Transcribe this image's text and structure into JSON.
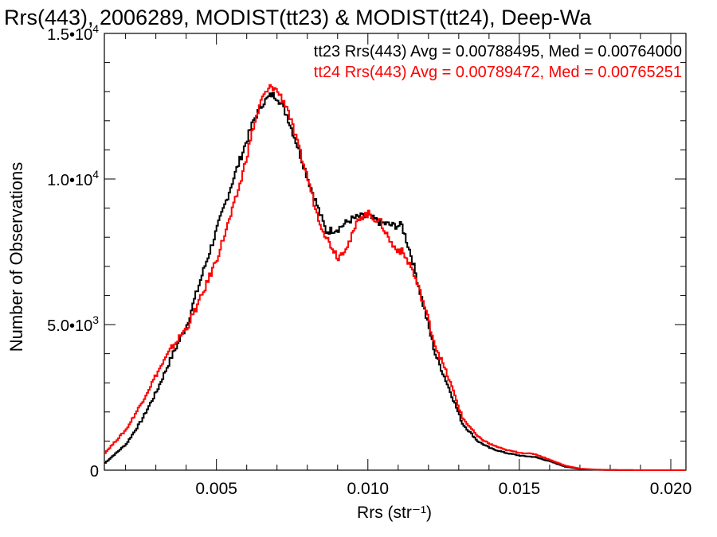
{
  "chart_data": {
    "type": "line",
    "title": "Rrs(443), 2006289, MODIST(tt23) & MODIST(tt24), Deep-Wa",
    "xlabel": "Rrs (str⁻¹)",
    "ylabel": "Number of Observations",
    "xlim": [
      0.0013,
      0.0205
    ],
    "ylim": [
      0,
      15000
    ],
    "x_tick_labels": [
      {
        "value": 0.005,
        "label": "0.005"
      },
      {
        "value": 0.01,
        "label": "0.010"
      },
      {
        "value": 0.015,
        "label": "0.015"
      },
      {
        "value": 0.02,
        "label": "0.020"
      }
    ],
    "y_tick_labels": [
      {
        "value": 0,
        "label": "0",
        "mantissa": "",
        "exponent": ""
      },
      {
        "value": 5000,
        "label": "5.0•10",
        "mantissa": "5.0•10",
        "exponent": "3"
      },
      {
        "value": 10000,
        "label": "1.0•10",
        "mantissa": "1.0•10",
        "exponent": "4"
      },
      {
        "value": 15000,
        "label": "1.5•10",
        "mantissa": "1.5•10",
        "exponent": "4"
      }
    ],
    "legend_placement": "top-right",
    "grid": false,
    "series": [
      {
        "name": "tt23",
        "legend": "tt23 Rrs(443) Avg = 0.00788495, Med = 0.00764000",
        "color": "#000000",
        "x": [
          0.0013,
          0.002,
          0.0025,
          0.003,
          0.0035,
          0.004,
          0.0045,
          0.005,
          0.0055,
          0.0058,
          0.0062,
          0.0065,
          0.0068,
          0.007,
          0.0073,
          0.0076,
          0.008,
          0.0083,
          0.0086,
          0.009,
          0.0094,
          0.0097,
          0.01,
          0.0104,
          0.0108,
          0.0111,
          0.0114,
          0.0118,
          0.0122,
          0.0127,
          0.0131,
          0.0136,
          0.014,
          0.0145,
          0.015,
          0.0155,
          0.016,
          0.0165,
          0.017,
          0.0175,
          0.018,
          0.019,
          0.0205
        ],
        "values": [
          250,
          900,
          1700,
          2700,
          3900,
          5000,
          6700,
          8300,
          9900,
          10800,
          12000,
          12600,
          12900,
          12800,
          12200,
          11300,
          10000,
          9100,
          8200,
          8300,
          8600,
          8700,
          8700,
          8500,
          8400,
          8400,
          7400,
          5700,
          4000,
          2700,
          1600,
          1000,
          760,
          600,
          500,
          450,
          300,
          120,
          40,
          15,
          5,
          0,
          0
        ]
      },
      {
        "name": "tt24",
        "legend": "tt24 Rrs(443) Avg = 0.00789472, Med = 0.00765251",
        "color": "#ff0000",
        "x": [
          0.0013,
          0.002,
          0.0025,
          0.003,
          0.0035,
          0.004,
          0.0045,
          0.005,
          0.0055,
          0.0058,
          0.0062,
          0.0065,
          0.0068,
          0.007,
          0.0073,
          0.0076,
          0.008,
          0.0083,
          0.0086,
          0.009,
          0.0094,
          0.0097,
          0.01,
          0.0104,
          0.0108,
          0.0111,
          0.0114,
          0.0118,
          0.0122,
          0.0127,
          0.0131,
          0.0136,
          0.014,
          0.0145,
          0.015,
          0.0155,
          0.016,
          0.0165,
          0.017,
          0.0175,
          0.018,
          0.019,
          0.0205
        ],
        "values": [
          600,
          1400,
          2300,
          3300,
          4200,
          4900,
          6000,
          7300,
          8900,
          10000,
          11800,
          12800,
          13200,
          13000,
          12500,
          11400,
          10000,
          8800,
          8000,
          7300,
          7900,
          8700,
          8800,
          8500,
          7700,
          7500,
          7000,
          5800,
          4300,
          3000,
          1800,
          1150,
          900,
          700,
          600,
          550,
          350,
          150,
          50,
          20,
          5,
          0,
          0
        ]
      }
    ]
  }
}
